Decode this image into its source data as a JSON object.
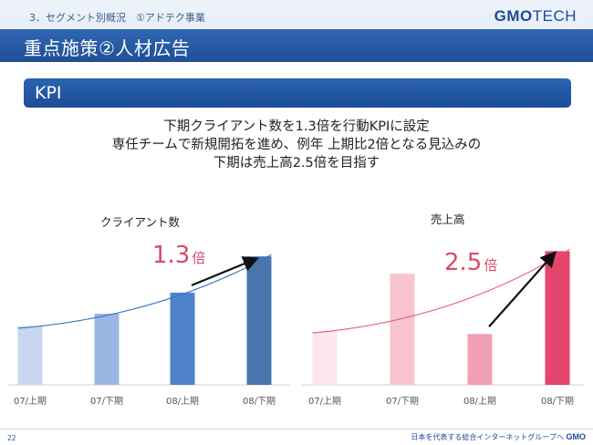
{
  "header": {
    "breadcrumb": "3．セグメント別概況　①アドテク事業",
    "logo_primary": "GMO",
    "logo_secondary": "TECH",
    "title": "重点施策②人材広告"
  },
  "section": {
    "label": "KPI"
  },
  "message": {
    "line1": "下期クライアント数を1.3倍を行動KPIに設定",
    "line2": "専任チームで新規開拓を進め、例年 上期比2倍となる見込みの",
    "line3": "下期は売上高2.5倍を目指す"
  },
  "chart_data": [
    {
      "type": "bar",
      "title": "クライアント数",
      "categories": [
        "07/上期",
        "07/下期",
        "08/上期",
        "08/下期"
      ],
      "values": [
        50,
        61,
        79,
        110
      ],
      "ylim": [
        0,
        125
      ],
      "annotation": "1.3倍",
      "colors": [
        "#c6d7ef",
        "#98b7e3",
        "#4f83cb",
        "#4a75ad"
      ],
      "trendline_color": "#2f73c2"
    },
    {
      "type": "bar",
      "title": "売上高",
      "categories": [
        "07/上期",
        "07/下期",
        "08/上期",
        "08/下期"
      ],
      "values": [
        57,
        118,
        54,
        142
      ],
      "ylim": [
        0,
        155
      ],
      "annotation": "2.5倍",
      "colors": [
        "#fce7ec",
        "#f7c3cf",
        "#f1a0b4",
        "#e4456d"
      ],
      "trendline_color": "#e9577a"
    }
  ],
  "annotation_color": "#d84a6b",
  "footer": {
    "page_number": "22",
    "tagline": "日本を代表する総合インターネットグループへ",
    "brand": "GMO"
  }
}
